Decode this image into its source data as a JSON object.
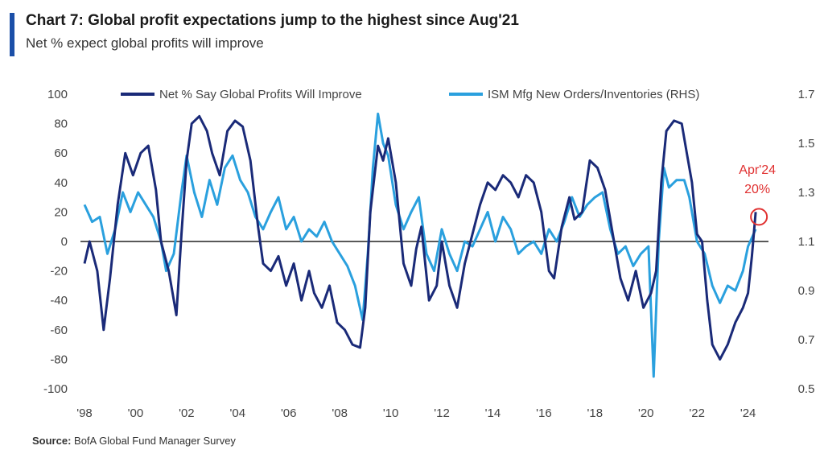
{
  "header": {
    "title": "Chart 7: Global profit expectations jump to the highest since Aug'21",
    "subtitle": "Net % expect global profits will improve"
  },
  "footer": {
    "source_label": "Source:",
    "source_text": "BofA Global Fund Manager Survey"
  },
  "colors": {
    "accent": "#1b4fa8",
    "series_dark": "#1a2a78",
    "series_light": "#2aa0de",
    "annotation": "#e03030"
  },
  "chart_data": {
    "type": "line",
    "title": "Chart 7: Global profit expectations jump to the highest since Aug'21",
    "subtitle": "Net % expect global profits will improve",
    "x_ticks": [
      "'98",
      "'00",
      "'02",
      "'04",
      "'06",
      "'08",
      "'10",
      "'12",
      "'14",
      "'16",
      "'18",
      "'20",
      "'22",
      "'24"
    ],
    "x_range": [
      1998,
      2024.8
    ],
    "ylim_left": [
      -100,
      100
    ],
    "ylim_right": [
      0.5,
      1.7
    ],
    "y_ticks_left": [
      "100",
      "80",
      "60",
      "40",
      "20",
      "0",
      "-20",
      "-40",
      "-60",
      "-80",
      "-100"
    ],
    "y_ticks_right": [
      "1.7",
      "1.5",
      "1.3",
      "1.1",
      "0.9",
      "0.7",
      "0.5"
    ],
    "legend_position": "top",
    "zero_line": true,
    "series": [
      {
        "name": "Net % Say Global Profits Will Improve",
        "axis": "left",
        "points": [
          [
            1998.0,
            -15
          ],
          [
            1998.2,
            0
          ],
          [
            1998.5,
            -20
          ],
          [
            1998.75,
            -60
          ],
          [
            1999.0,
            -25
          ],
          [
            1999.3,
            25
          ],
          [
            1999.6,
            60
          ],
          [
            1999.9,
            45
          ],
          [
            2000.2,
            60
          ],
          [
            2000.5,
            65
          ],
          [
            2000.8,
            35
          ],
          [
            2001.0,
            0
          ],
          [
            2001.3,
            -20
          ],
          [
            2001.6,
            -50
          ],
          [
            2001.8,
            5
          ],
          [
            2002.0,
            55
          ],
          [
            2002.2,
            80
          ],
          [
            2002.5,
            85
          ],
          [
            2002.8,
            75
          ],
          [
            2003.0,
            60
          ],
          [
            2003.3,
            45
          ],
          [
            2003.6,
            75
          ],
          [
            2003.9,
            82
          ],
          [
            2004.2,
            78
          ],
          [
            2004.5,
            55
          ],
          [
            2004.8,
            10
          ],
          [
            2005.0,
            -15
          ],
          [
            2005.3,
            -20
          ],
          [
            2005.6,
            -10
          ],
          [
            2005.9,
            -30
          ],
          [
            2006.2,
            -15
          ],
          [
            2006.5,
            -40
          ],
          [
            2006.8,
            -20
          ],
          [
            2007.0,
            -35
          ],
          [
            2007.3,
            -45
          ],
          [
            2007.6,
            -30
          ],
          [
            2007.9,
            -55
          ],
          [
            2008.2,
            -60
          ],
          [
            2008.5,
            -70
          ],
          [
            2008.8,
            -72
          ],
          [
            2009.0,
            -45
          ],
          [
            2009.2,
            20
          ],
          [
            2009.5,
            65
          ],
          [
            2009.7,
            55
          ],
          [
            2009.9,
            70
          ],
          [
            2010.2,
            40
          ],
          [
            2010.5,
            -15
          ],
          [
            2010.8,
            -30
          ],
          [
            2011.0,
            -5
          ],
          [
            2011.2,
            10
          ],
          [
            2011.5,
            -40
          ],
          [
            2011.8,
            -30
          ],
          [
            2012.0,
            0
          ],
          [
            2012.3,
            -30
          ],
          [
            2012.6,
            -45
          ],
          [
            2012.9,
            -15
          ],
          [
            2013.2,
            5
          ],
          [
            2013.5,
            25
          ],
          [
            2013.8,
            40
          ],
          [
            2014.1,
            35
          ],
          [
            2014.4,
            45
          ],
          [
            2014.7,
            40
          ],
          [
            2015.0,
            30
          ],
          [
            2015.3,
            45
          ],
          [
            2015.6,
            40
          ],
          [
            2015.9,
            20
          ],
          [
            2016.2,
            -20
          ],
          [
            2016.4,
            -25
          ],
          [
            2016.7,
            10
          ],
          [
            2017.0,
            30
          ],
          [
            2017.2,
            15
          ],
          [
            2017.5,
            20
          ],
          [
            2017.8,
            55
          ],
          [
            2018.1,
            50
          ],
          [
            2018.4,
            35
          ],
          [
            2018.7,
            5
          ],
          [
            2019.0,
            -25
          ],
          [
            2019.3,
            -40
          ],
          [
            2019.6,
            -20
          ],
          [
            2019.9,
            -45
          ],
          [
            2020.2,
            -35
          ],
          [
            2020.4,
            -20
          ],
          [
            2020.6,
            40
          ],
          [
            2020.8,
            75
          ],
          [
            2021.1,
            82
          ],
          [
            2021.4,
            80
          ],
          [
            2021.6,
            60
          ],
          [
            2021.8,
            40
          ],
          [
            2022.0,
            5
          ],
          [
            2022.2,
            0
          ],
          [
            2022.4,
            -40
          ],
          [
            2022.6,
            -70
          ],
          [
            2022.9,
            -80
          ],
          [
            2023.2,
            -70
          ],
          [
            2023.5,
            -55
          ],
          [
            2023.8,
            -45
          ],
          [
            2024.0,
            -35
          ],
          [
            2024.15,
            -10
          ],
          [
            2024.3,
            20
          ]
        ]
      },
      {
        "name": "ISM Mfg New Orders/Inventories (RHS)",
        "axis": "right",
        "points": [
          [
            1998.0,
            1.25
          ],
          [
            1998.3,
            1.18
          ],
          [
            1998.6,
            1.2
          ],
          [
            1998.9,
            1.05
          ],
          [
            1999.2,
            1.15
          ],
          [
            1999.5,
            1.3
          ],
          [
            1999.8,
            1.22
          ],
          [
            2000.1,
            1.3
          ],
          [
            2000.4,
            1.25
          ],
          [
            2000.7,
            1.2
          ],
          [
            2001.0,
            1.1
          ],
          [
            2001.2,
            0.98
          ],
          [
            2001.5,
            1.05
          ],
          [
            2001.8,
            1.3
          ],
          [
            2002.0,
            1.45
          ],
          [
            2002.3,
            1.3
          ],
          [
            2002.6,
            1.2
          ],
          [
            2002.9,
            1.35
          ],
          [
            2003.2,
            1.25
          ],
          [
            2003.5,
            1.4
          ],
          [
            2003.8,
            1.45
          ],
          [
            2004.1,
            1.35
          ],
          [
            2004.4,
            1.3
          ],
          [
            2004.7,
            1.2
          ],
          [
            2005.0,
            1.15
          ],
          [
            2005.3,
            1.22
          ],
          [
            2005.6,
            1.28
          ],
          [
            2005.9,
            1.15
          ],
          [
            2006.2,
            1.2
          ],
          [
            2006.5,
            1.1
          ],
          [
            2006.8,
            1.15
          ],
          [
            2007.1,
            1.12
          ],
          [
            2007.4,
            1.18
          ],
          [
            2007.7,
            1.1
          ],
          [
            2008.0,
            1.05
          ],
          [
            2008.3,
            1.0
          ],
          [
            2008.6,
            0.92
          ],
          [
            2008.9,
            0.78
          ],
          [
            2009.1,
            1.05
          ],
          [
            2009.3,
            1.4
          ],
          [
            2009.5,
            1.62
          ],
          [
            2009.7,
            1.5
          ],
          [
            2009.9,
            1.45
          ],
          [
            2010.2,
            1.25
          ],
          [
            2010.5,
            1.15
          ],
          [
            2010.8,
            1.22
          ],
          [
            2011.1,
            1.28
          ],
          [
            2011.4,
            1.05
          ],
          [
            2011.7,
            0.98
          ],
          [
            2012.0,
            1.15
          ],
          [
            2012.3,
            1.05
          ],
          [
            2012.6,
            0.98
          ],
          [
            2012.9,
            1.1
          ],
          [
            2013.2,
            1.08
          ],
          [
            2013.5,
            1.15
          ],
          [
            2013.8,
            1.22
          ],
          [
            2014.1,
            1.1
          ],
          [
            2014.4,
            1.2
          ],
          [
            2014.7,
            1.15
          ],
          [
            2015.0,
            1.05
          ],
          [
            2015.3,
            1.08
          ],
          [
            2015.6,
            1.1
          ],
          [
            2015.9,
            1.05
          ],
          [
            2016.2,
            1.15
          ],
          [
            2016.5,
            1.1
          ],
          [
            2016.8,
            1.18
          ],
          [
            2017.1,
            1.28
          ],
          [
            2017.4,
            1.2
          ],
          [
            2017.7,
            1.25
          ],
          [
            2018.0,
            1.28
          ],
          [
            2018.3,
            1.3
          ],
          [
            2018.6,
            1.15
          ],
          [
            2018.9,
            1.05
          ],
          [
            2019.2,
            1.08
          ],
          [
            2019.5,
            1.0
          ],
          [
            2019.8,
            1.05
          ],
          [
            2020.1,
            1.08
          ],
          [
            2020.3,
            0.55
          ],
          [
            2020.5,
            1.1
          ],
          [
            2020.7,
            1.4
          ],
          [
            2020.9,
            1.32
          ],
          [
            2021.2,
            1.35
          ],
          [
            2021.5,
            1.35
          ],
          [
            2021.7,
            1.28
          ],
          [
            2022.0,
            1.1
          ],
          [
            2022.3,
            1.05
          ],
          [
            2022.6,
            0.92
          ],
          [
            2022.9,
            0.85
          ],
          [
            2023.2,
            0.92
          ],
          [
            2023.5,
            0.9
          ],
          [
            2023.8,
            0.98
          ],
          [
            2024.0,
            1.08
          ],
          [
            2024.3,
            1.15
          ]
        ]
      }
    ],
    "annotation": {
      "label_line1": "Apr'24",
      "label_line2": "20%",
      "x": 2024.3,
      "y": 20
    }
  }
}
